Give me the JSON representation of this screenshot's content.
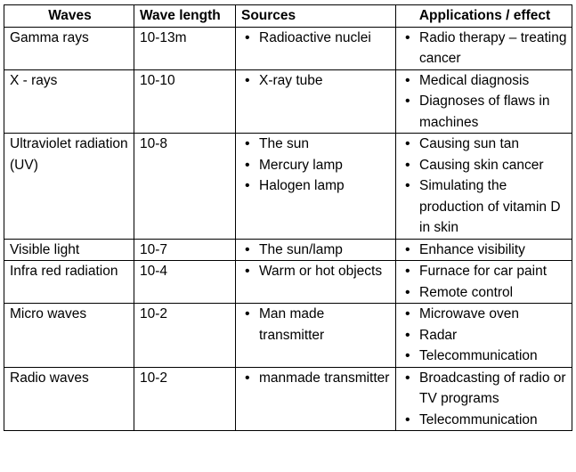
{
  "headers": [
    "Waves",
    "Wave length",
    "Sources",
    "Applications / effect"
  ],
  "rows": [
    {
      "wave": "Gamma rays",
      "length": "10-13m",
      "sources": [
        "Radioactive nuclei"
      ],
      "applications": [
        "Radio therapy – treating cancer"
      ]
    },
    {
      "wave": "X - rays",
      "length": "10-10",
      "sources": [
        "X-ray tube"
      ],
      "applications": [
        "Medical diagnosis",
        "Diagnoses of flaws in machines"
      ]
    },
    {
      "wave": "Ultraviolet radiation (UV)",
      "length": "10-8",
      "sources": [
        "The sun",
        "Mercury lamp",
        "Halogen lamp"
      ],
      "applications": [
        "Causing sun tan",
        "Causing skin cancer",
        "Simulating the production of vitamin D in skin"
      ]
    },
    {
      "wave": "Visible light",
      "length": "10-7",
      "sources": [
        "The sun/lamp"
      ],
      "applications": [
        "Enhance visibility"
      ]
    },
    {
      "wave": "Infra red radiation",
      "length": "10-4",
      "sources": [
        "Warm or hot objects"
      ],
      "applications": [
        "Furnace for car paint",
        "Remote control"
      ]
    },
    {
      "wave": "Micro waves",
      "length": "10-2",
      "sources": [
        "Man made transmitter"
      ],
      "applications": [
        "Microwave oven",
        "Radar",
        "Telecommunication"
      ]
    },
    {
      "wave": "Radio waves",
      "length": "10-2",
      "sources": [
        "manmade transmitter"
      ],
      "applications": [
        "Broadcasting of radio or TV programs",
        "Telecommunication"
      ]
    }
  ]
}
